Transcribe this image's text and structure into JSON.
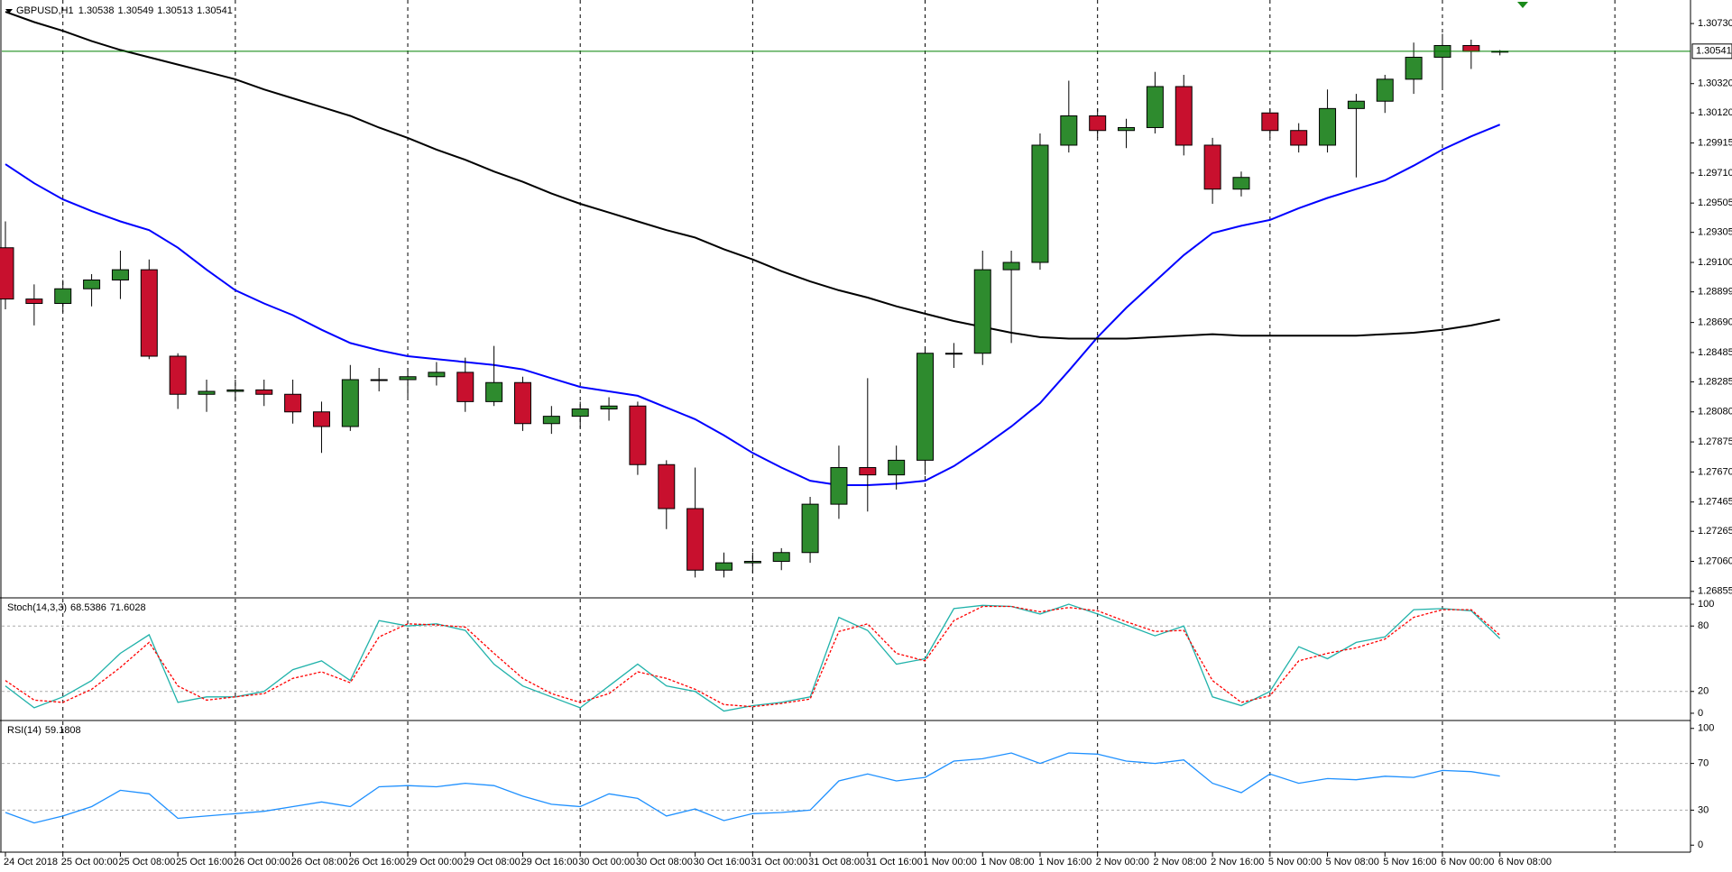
{
  "chart_data": [
    {
      "type": "candlestick",
      "title": "GBPUSD,H1",
      "categories": [
        "24 Oct 2018",
        null,
        "25 Oct 00:00",
        null,
        "25 Oct 08:00",
        null,
        "25 Oct 16:00",
        null,
        "26 Oct 00:00",
        null,
        "26 Oct 08:00",
        null,
        "26 Oct 16:00",
        null,
        "29 Oct 00:00",
        null,
        "29 Oct 08:00",
        null,
        "29 Oct 16:00",
        null,
        "30 Oct 00:00",
        null,
        "30 Oct 08:00",
        null,
        "30 Oct 16:00",
        null,
        "31 Oct 00:00",
        null,
        "31 Oct 08:00",
        null,
        "31 Oct 16:00",
        null,
        "1 Nov 00:00",
        null,
        "1 Nov 08:00",
        null,
        "1 Nov 16:00",
        null,
        "2 Nov 00:00",
        null,
        "2 Nov 08:00",
        null,
        "2 Nov 16:00",
        null,
        "5 Nov 00:00",
        null,
        "5 Nov 08:00",
        null,
        "5 Nov 16:00",
        null,
        "6 Nov 00:00",
        null,
        "6 Nov 08:00"
      ],
      "open": [
        1.292,
        1.2885,
        1.2882,
        1.2892,
        1.2898,
        1.2905,
        1.2846,
        1.282,
        1.2822,
        1.2823,
        1.282,
        1.2808,
        1.2798,
        1.283,
        1.283,
        1.2832,
        1.2835,
        1.2815,
        1.2828,
        1.28,
        1.2805,
        1.281,
        1.2812,
        1.2772,
        1.2742,
        1.27,
        1.2705,
        1.2706,
        1.2712,
        1.2745,
        1.277,
        1.2765,
        1.2775,
        1.2848,
        1.2848,
        1.2905,
        1.291,
        1.299,
        1.301,
        1.3,
        1.3002,
        1.303,
        1.299,
        1.296,
        1.3012,
        1.3,
        1.299,
        1.3015,
        1.302,
        1.3035,
        1.305,
        1.3058,
        1.30538
      ],
      "high": [
        1.2938,
        1.2895,
        1.2898,
        1.2902,
        1.2918,
        1.2912,
        1.2848,
        1.283,
        1.283,
        1.283,
        1.283,
        1.2815,
        1.284,
        1.2838,
        1.2838,
        1.2842,
        1.2845,
        1.2853,
        1.2832,
        1.2812,
        1.2815,
        1.2818,
        1.2815,
        1.2775,
        1.277,
        1.2712,
        1.2712,
        1.2715,
        1.275,
        1.2785,
        1.2831,
        1.2785,
        1.2852,
        1.2855,
        1.2918,
        1.2918,
        1.2998,
        1.3034,
        1.3015,
        1.3008,
        1.304,
        1.3038,
        1.2995,
        1.2972,
        1.3015,
        1.3005,
        1.3028,
        1.3025,
        1.3038,
        1.306,
        1.3066,
        1.3062,
        1.30549
      ],
      "low": [
        1.2878,
        1.2867,
        1.2876,
        1.288,
        1.2885,
        1.2844,
        1.281,
        1.2808,
        1.2815,
        1.2812,
        1.28,
        1.278,
        1.2795,
        1.2822,
        1.2818,
        1.2826,
        1.2808,
        1.2812,
        1.2795,
        1.2793,
        1.2797,
        1.2802,
        1.2765,
        1.2728,
        1.2695,
        1.2695,
        1.2698,
        1.27,
        1.2705,
        1.2735,
        1.274,
        1.2755,
        1.2765,
        1.2838,
        1.284,
        1.2855,
        1.2905,
        1.2985,
        1.2995,
        1.2988,
        1.2998,
        1.2983,
        1.295,
        1.2955,
        1.2995,
        1.2985,
        1.2985,
        1.2968,
        1.3012,
        1.3025,
        1.303,
        1.3042,
        1.30513
      ],
      "close": [
        1.2885,
        1.2882,
        1.2892,
        1.2898,
        1.2905,
        1.2846,
        1.282,
        1.2822,
        1.2823,
        1.282,
        1.2808,
        1.2798,
        1.283,
        1.283,
        1.2832,
        1.2835,
        1.2815,
        1.2828,
        1.28,
        1.2805,
        1.281,
        1.2812,
        1.2772,
        1.2742,
        1.27,
        1.2705,
        1.2706,
        1.2712,
        1.2745,
        1.277,
        1.2765,
        1.2775,
        1.2848,
        1.2848,
        1.2905,
        1.291,
        1.299,
        1.301,
        1.3,
        1.3002,
        1.303,
        1.299,
        1.296,
        1.2968,
        1.3,
        1.299,
        1.3015,
        1.302,
        1.3035,
        1.305,
        1.3058,
        1.3054,
        1.30541
      ],
      "up_color": "#2e8b2e",
      "down_color": "#c8102e",
      "current_price_color": "#008000",
      "lines": [
        {
          "color": "#0000ff",
          "values": [
            1.2977,
            1.2964,
            1.2953,
            1.2945,
            1.2938,
            1.2932,
            1.292,
            1.2905,
            1.2891,
            1.2882,
            1.2874,
            1.2864,
            1.2855,
            1.285,
            1.2846,
            1.2844,
            1.2842,
            1.284,
            1.2837,
            1.2831,
            1.2825,
            1.2822,
            1.2819,
            1.2811,
            1.2803,
            1.2792,
            1.278,
            1.277,
            1.2761,
            1.2758,
            1.2758,
            1.2759,
            1.2761,
            1.2771,
            1.2784,
            1.2798,
            1.2814,
            1.2836,
            1.2859,
            1.2879,
            1.2897,
            1.2915,
            1.293,
            1.2935,
            1.2939,
            1.2947,
            1.2954,
            1.296,
            1.2966,
            1.2976,
            1.2987,
            1.2996,
            1.3004
          ]
        },
        {
          "color": "#000000",
          "values": [
            1.3081,
            1.3074,
            1.3068,
            1.3061,
            1.3055,
            1.305,
            1.3045,
            1.304,
            1.3035,
            1.3028,
            1.3022,
            1.3016,
            1.301,
            1.3002,
            1.2995,
            1.2987,
            1.298,
            1.2972,
            1.2965,
            1.2957,
            1.295,
            1.2944,
            1.2938,
            1.2932,
            1.2927,
            1.2919,
            1.2912,
            1.2904,
            1.2897,
            1.2891,
            1.2886,
            1.288,
            1.2875,
            1.287,
            1.2866,
            1.2862,
            1.2859,
            1.2858,
            1.2858,
            1.2858,
            1.2859,
            1.286,
            1.2861,
            1.286,
            1.286,
            1.286,
            1.286,
            1.286,
            1.2861,
            1.2862,
            1.2864,
            1.2867,
            1.2871
          ]
        }
      ],
      "ylim": [
        1.26817,
        1.30866
      ],
      "yticks": [
        {
          "value": 1.3073,
          "label": "1.30730"
        },
        {
          "value": 1.3032,
          "label": "1.30320"
        },
        {
          "value": 1.3012,
          "label": "1.30120"
        },
        1.29915,
        {
          "value": 1.2971,
          "label": "1.29710"
        },
        1.29505,
        1.29305,
        {
          "value": 1.291,
          "label": "1.29100"
        },
        1.28899,
        {
          "value": 1.2869,
          "label": "1.28690"
        },
        1.28485,
        1.28285,
        {
          "value": 1.2808,
          "label": "1.28080"
        },
        1.27875,
        {
          "value": 1.2767,
          "label": "1.27670"
        },
        1.27465,
        1.27265,
        {
          "value": 1.2706,
          "label": "1.27060"
        },
        1.26855
      ]
    },
    {
      "type": "line",
      "title": "Stoch(14,3,3)",
      "series": [
        {
          "color": "#20b2aa",
          "dashed": false,
          "values": [
            25,
            5,
            15,
            30,
            55,
            72,
            10,
            15,
            15,
            20,
            40,
            48,
            30,
            85,
            80,
            82,
            76,
            45,
            25,
            15,
            5,
            25,
            45,
            25,
            20,
            2,
            7,
            10,
            15,
            88,
            76,
            45,
            50,
            96,
            99,
            98,
            91,
            100,
            91,
            81,
            71,
            80,
            15,
            7,
            20,
            61,
            50,
            65,
            70,
            95,
            96,
            94,
            68.5386
          ]
        },
        {
          "color": "#ff0000",
          "dashed": true,
          "values": [
            30,
            12,
            10,
            22,
            42,
            65,
            25,
            12,
            15,
            18,
            32,
            38,
            28,
            70,
            82,
            81,
            79,
            55,
            32,
            18,
            10,
            18,
            38,
            32,
            22,
            8,
            6,
            9,
            13,
            75,
            82,
            55,
            48,
            85,
            98,
            98,
            93,
            97,
            94,
            84,
            75,
            76,
            30,
            10,
            16,
            48,
            55,
            60,
            68,
            88,
            95,
            95,
            71.6028
          ]
        }
      ],
      "ylim": [
        -5,
        105
      ],
      "yticks": [
        0,
        20,
        80,
        100
      ],
      "levels": [
        20,
        80
      ]
    },
    {
      "type": "line",
      "title": "RSI(14)",
      "series": [
        {
          "color": "#1e90ff",
          "dashed": false,
          "values": [
            28,
            19,
            25,
            33,
            47,
            44,
            23,
            25,
            27,
            29,
            33,
            37,
            33,
            50,
            51,
            50,
            53,
            51,
            42,
            35,
            33,
            44,
            40,
            25,
            31,
            21,
            27,
            28,
            30,
            55,
            61,
            55,
            58,
            72,
            74,
            79,
            70,
            79,
            78,
            72,
            70,
            73,
            53,
            45,
            61,
            53,
            57,
            56,
            59,
            58,
            64,
            63,
            59.1808
          ]
        }
      ],
      "ylim": [
        -6,
        106
      ],
      "yticks": [
        0,
        30,
        70,
        100
      ],
      "levels": [
        30,
        70
      ]
    }
  ]
}
